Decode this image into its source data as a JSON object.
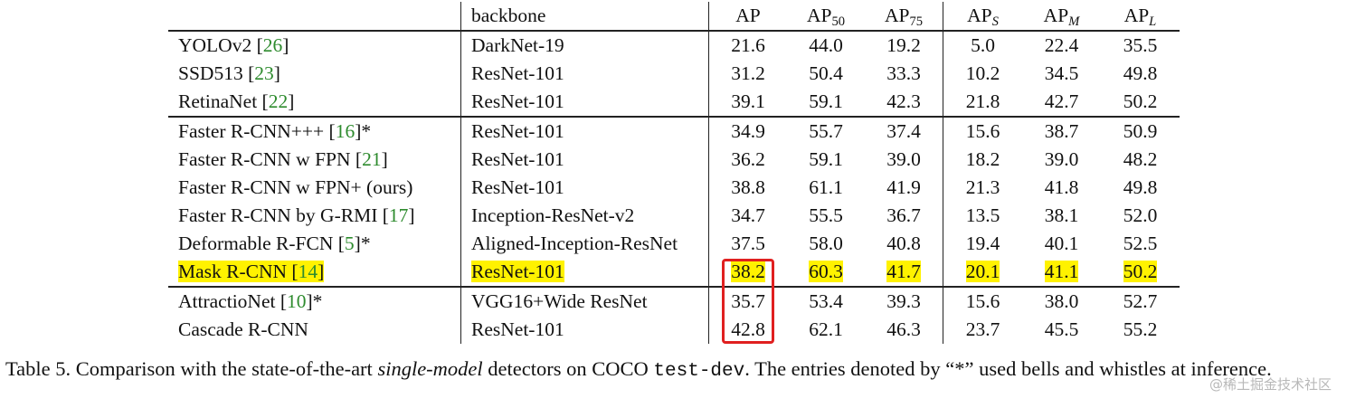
{
  "table": {
    "header": {
      "method": "",
      "backbone": "backbone",
      "ap": "AP",
      "ap50_base": "AP",
      "ap50_sub": "50",
      "ap75_base": "AP",
      "ap75_sub": "75",
      "aps_base": "AP",
      "aps_sub": "S",
      "apm_base": "AP",
      "apm_sub": "M",
      "apl_base": "AP",
      "apl_sub": "L"
    },
    "groups": [
      [
        {
          "method": "YOLOv2 [",
          "ref": "26",
          "suffix": "]",
          "backbone": "DarkNet-19",
          "ap": "21.6",
          "ap50": "44.0",
          "ap75": "19.2",
          "aps": "5.0",
          "apm": "22.4",
          "apl": "35.5"
        },
        {
          "method": "SSD513 [",
          "ref": "23",
          "suffix": "]",
          "backbone": "ResNet-101",
          "ap": "31.2",
          "ap50": "50.4",
          "ap75": "33.3",
          "aps": "10.2",
          "apm": "34.5",
          "apl": "49.8"
        },
        {
          "method": "RetinaNet [",
          "ref": "22",
          "suffix": "]",
          "backbone": "ResNet-101",
          "ap": "39.1",
          "ap50": "59.1",
          "ap75": "42.3",
          "aps": "21.8",
          "apm": "42.7",
          "apl": "50.2"
        }
      ],
      [
        {
          "method": "Faster R-CNN+++ [",
          "ref": "16",
          "suffix": "]*",
          "backbone": "ResNet-101",
          "ap": "34.9",
          "ap50": "55.7",
          "ap75": "37.4",
          "aps": "15.6",
          "apm": "38.7",
          "apl": "50.9"
        },
        {
          "method": "Faster R-CNN w FPN [",
          "ref": "21",
          "suffix": "]",
          "backbone": "ResNet-101",
          "ap": "36.2",
          "ap50": "59.1",
          "ap75": "39.0",
          "aps": "18.2",
          "apm": "39.0",
          "apl": "48.2"
        },
        {
          "method": "Faster R-CNN w FPN+ (ours)",
          "ref": "",
          "suffix": "",
          "backbone": "ResNet-101",
          "ap": "38.8",
          "ap50": "61.1",
          "ap75": "41.9",
          "aps": "21.3",
          "apm": "41.8",
          "apl": "49.8"
        },
        {
          "method": "Faster R-CNN by G-RMI [",
          "ref": "17",
          "suffix": "]",
          "backbone": "Inception-ResNet-v2",
          "ap": "34.7",
          "ap50": "55.5",
          "ap75": "36.7",
          "aps": "13.5",
          "apm": "38.1",
          "apl": "52.0"
        },
        {
          "method": "Deformable R-FCN [",
          "ref": "5",
          "suffix": "]*",
          "backbone": "Aligned-Inception-ResNet",
          "ap": "37.5",
          "ap50": "58.0",
          "ap75": "40.8",
          "aps": "19.4",
          "apm": "40.1",
          "apl": "52.5"
        },
        {
          "method": "Mask R-CNN [",
          "ref": "14",
          "suffix": "]",
          "backbone": "ResNet-101",
          "ap": "38.2",
          "ap50": "60.3",
          "ap75": "41.7",
          "aps": "20.1",
          "apm": "41.1",
          "apl": "50.2",
          "highlight": true
        }
      ],
      [
        {
          "method": "AttractioNet [",
          "ref": "10",
          "suffix": "]*",
          "backbone": "VGG16+Wide ResNet",
          "ap": "35.7",
          "ap50": "53.4",
          "ap75": "39.3",
          "aps": "15.6",
          "apm": "38.0",
          "apl": "52.7"
        },
        {
          "method": "Cascade R-CNN",
          "ref": "",
          "suffix": "",
          "backbone": "ResNet-101",
          "ap": "42.8",
          "ap50": "62.1",
          "ap75": "46.3",
          "aps": "23.7",
          "apm": "45.5",
          "apl": "55.2",
          "bold": true
        }
      ]
    ],
    "box_color": "#e02020",
    "highlight_color": "#fff200",
    "ref_color": "#2e8b2e"
  },
  "caption": {
    "part1": "Table 5. Comparison with the state-of-the-art ",
    "italic": "single-model",
    "part2": " detectors on COCO ",
    "mono": "test-dev",
    "part3": ". The entries denoted by “*” used bells and whistles at inference."
  },
  "watermark": "@稀土掘金技术社区"
}
